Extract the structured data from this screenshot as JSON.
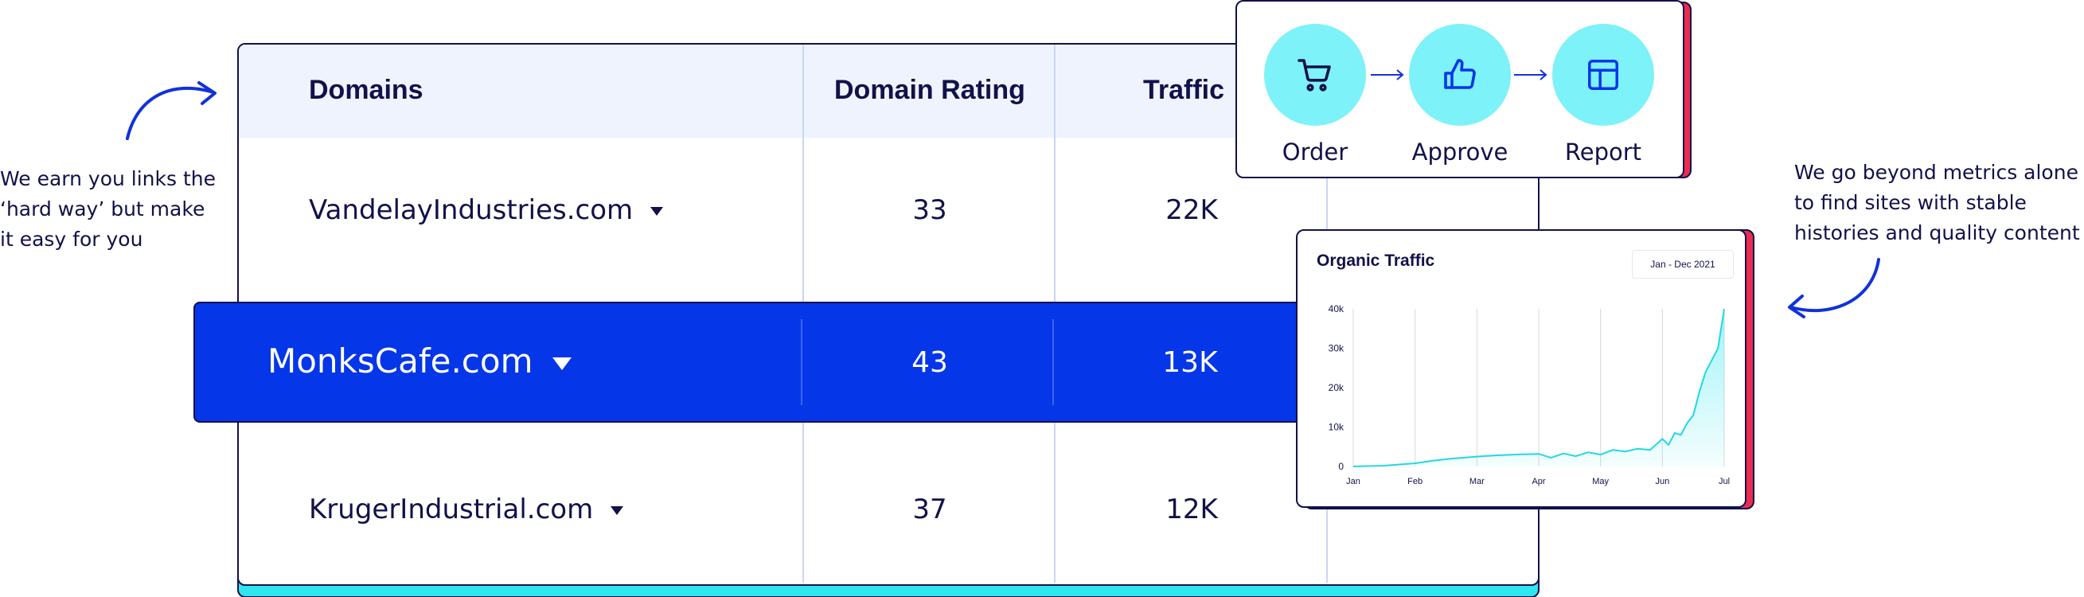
{
  "left_note": [
    "We earn you links the",
    "‘hard way’ but make",
    "it easy for you"
  ],
  "right_note": [
    "We go beyond metrics alone",
    "to find sites with stable",
    "histories and quality content"
  ],
  "table": {
    "headers": [
      "Domains",
      "Domain Rating",
      "Traffic"
    ],
    "rows": [
      {
        "domain": "VandelayIndustries.com",
        "rating": "33",
        "traffic": "22K"
      },
      {
        "domain": "MonksCafe.com",
        "rating": "43",
        "traffic": "13K",
        "highlighted": true
      },
      {
        "domain": "KrugerIndustrial.com",
        "rating": "37",
        "traffic": "12K"
      }
    ]
  },
  "workflow": {
    "steps": [
      {
        "label": "Order",
        "icon": "cart-icon"
      },
      {
        "label": "Approve",
        "icon": "thumbs-up-icon"
      },
      {
        "label": "Report",
        "icon": "report-layout-icon"
      }
    ]
  },
  "colors": {
    "navy": "#12114a",
    "highlight_blue": "#0536e8",
    "cyan": "#2ee6ee",
    "circle_cyan": "#7df2f8",
    "red": "#ea2c4f",
    "header_bg": "#eff3fd"
  },
  "chart_data": {
    "type": "area",
    "title": "Organic Traffic",
    "date_range": "Jan - Dec 2021",
    "x_ticks": [
      "Jan",
      "Feb",
      "Mar",
      "Apr",
      "May",
      "Jun",
      "Jul"
    ],
    "y_ticks": [
      "0",
      "10k",
      "20k",
      "30k",
      "40k"
    ],
    "ylim": [
      0,
      40000
    ],
    "xlim": [
      0,
      6
    ],
    "grid": "vertical",
    "series": [
      {
        "x": [
          0,
          0.5,
          1,
          1.3,
          1.6,
          2,
          2.3,
          2.6,
          3,
          3.2,
          3.4,
          3.6,
          3.8,
          4,
          4.2,
          4.4,
          4.6,
          4.8,
          5,
          5.1,
          5.2,
          5.3,
          5.4,
          5.5,
          5.6,
          5.7,
          5.8,
          5.9,
          6
        ],
        "y": [
          0,
          200,
          800,
          1500,
          2000,
          2500,
          2800,
          3000,
          3200,
          2200,
          3300,
          2600,
          3600,
          3000,
          4200,
          3800,
          4500,
          4200,
          7000,
          5500,
          8500,
          8000,
          11000,
          13000,
          19000,
          24000,
          27000,
          30000,
          40000
        ]
      }
    ]
  }
}
